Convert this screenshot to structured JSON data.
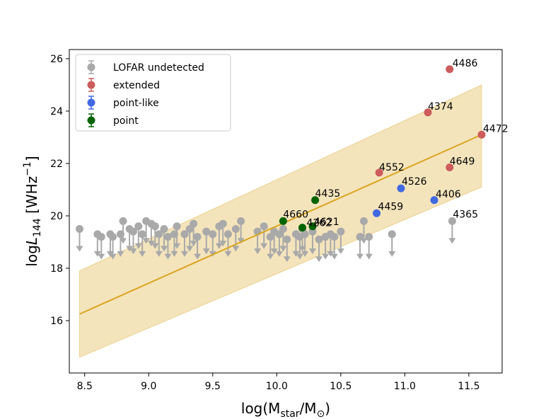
{
  "chart_data": {
    "type": "scatter",
    "xlabel": "log(M_star/M_⊙)",
    "ylabel": "logL_144 [WHz^-1]",
    "xlim": [
      8.38,
      11.76
    ],
    "ylim": [
      14.0,
      26.35
    ],
    "xticks": [
      8.5,
      9.0,
      9.5,
      10.0,
      10.5,
      11.0,
      11.5
    ],
    "xtick_labels": [
      "8.5",
      "9.0",
      "9.5",
      "10.0",
      "10.5",
      "11.0",
      "11.5"
    ],
    "yticks": [
      16,
      18,
      20,
      22,
      24,
      26
    ],
    "ytick_labels": [
      "16",
      "18",
      "20",
      "22",
      "24",
      "26"
    ],
    "colors": {
      "undetected": "#a9a9a9",
      "extended": "#cd5c5c",
      "point_like": "#4169e1",
      "point": "#006400",
      "fit_line": "#daa520",
      "fit_band": "#daa520"
    },
    "fit": {
      "x": [
        8.46,
        11.6
      ],
      "y": [
        16.25,
        23.1
      ],
      "band_lower": [
        14.6,
        21.1
      ],
      "band_upper": [
        17.9,
        25.0
      ]
    },
    "legend": {
      "placement": "top-left",
      "entries": [
        {
          "label": "LOFAR undetected",
          "series": "undetected"
        },
        {
          "label": "extended",
          "series": "extended"
        },
        {
          "label": "point-like",
          "series": "point_like"
        },
        {
          "label": "point",
          "series": "point"
        }
      ]
    },
    "undetected": [
      {
        "x": 8.46,
        "y": 19.5
      },
      {
        "x": 8.6,
        "y": 19.3
      },
      {
        "x": 8.63,
        "y": 19.2
      },
      {
        "x": 8.7,
        "y": 19.3
      },
      {
        "x": 8.72,
        "y": 19.2
      },
      {
        "x": 8.78,
        "y": 19.3
      },
      {
        "x": 8.8,
        "y": 19.8
      },
      {
        "x": 8.85,
        "y": 19.5
      },
      {
        "x": 8.88,
        "y": 19.4
      },
      {
        "x": 8.92,
        "y": 19.6
      },
      {
        "x": 8.95,
        "y": 19.3
      },
      {
        "x": 8.98,
        "y": 19.8
      },
      {
        "x": 9.02,
        "y": 19.7
      },
      {
        "x": 9.05,
        "y": 19.6
      },
      {
        "x": 9.08,
        "y": 19.3
      },
      {
        "x": 9.12,
        "y": 19.5
      },
      {
        "x": 9.15,
        "y": 19.2
      },
      {
        "x": 9.2,
        "y": 19.3
      },
      {
        "x": 9.22,
        "y": 19.6
      },
      {
        "x": 9.28,
        "y": 19.3
      },
      {
        "x": 9.32,
        "y": 19.5
      },
      {
        "x": 9.35,
        "y": 19.7
      },
      {
        "x": 9.38,
        "y": 19.2
      },
      {
        "x": 9.45,
        "y": 19.4
      },
      {
        "x": 9.5,
        "y": 19.3
      },
      {
        "x": 9.55,
        "y": 19.6
      },
      {
        "x": 9.58,
        "y": 19.7
      },
      {
        "x": 9.62,
        "y": 19.3
      },
      {
        "x": 9.68,
        "y": 19.5
      },
      {
        "x": 9.72,
        "y": 19.8
      },
      {
        "x": 9.85,
        "y": 19.4
      },
      {
        "x": 9.9,
        "y": 19.6
      },
      {
        "x": 9.95,
        "y": 19.2
      },
      {
        "x": 9.98,
        "y": 19.4
      },
      {
        "x": 10.02,
        "y": 19.3
      },
      {
        "x": 10.05,
        "y": 19.5
      },
      {
        "x": 10.08,
        "y": 19.1
      },
      {
        "x": 10.15,
        "y": 19.3
      },
      {
        "x": 10.18,
        "y": 19.2
      },
      {
        "x": 10.2,
        "y": 19.5
      },
      {
        "x": 10.22,
        "y": 19.3
      },
      {
        "x": 10.28,
        "y": 19.4
      },
      {
        "x": 10.33,
        "y": 19.1
      },
      {
        "x": 10.38,
        "y": 19.2
      },
      {
        "x": 10.42,
        "y": 19.3
      },
      {
        "x": 10.45,
        "y": 19.2
      },
      {
        "x": 10.5,
        "y": 19.4
      },
      {
        "x": 10.65,
        "y": 19.2
      },
      {
        "x": 10.68,
        "y": 19.8
      },
      {
        "x": 10.72,
        "y": 19.2
      },
      {
        "x": 10.9,
        "y": 19.3
      },
      {
        "x": 11.37,
        "y": 19.8
      }
    ],
    "extended": [
      {
        "x": 10.8,
        "y": 21.65,
        "label": "4552"
      },
      {
        "x": 11.18,
        "y": 23.95,
        "label": "4374"
      },
      {
        "x": 11.35,
        "y": 25.6,
        "label": "4486"
      },
      {
        "x": 11.6,
        "y": 23.1,
        "label": "4472"
      },
      {
        "x": 11.35,
        "y": 21.85,
        "label": "4649"
      }
    ],
    "point_like": [
      {
        "x": 10.97,
        "y": 21.05,
        "label": "4526"
      },
      {
        "x": 10.78,
        "y": 20.1,
        "label": "4459"
      },
      {
        "x": 11.23,
        "y": 20.6,
        "label": "4406"
      }
    ],
    "point": [
      {
        "x": 10.3,
        "y": 20.6,
        "label": "4435"
      },
      {
        "x": 10.05,
        "y": 19.8,
        "label": "4660"
      },
      {
        "x": 10.2,
        "y": 19.55,
        "label": "4262"
      },
      {
        "x": 10.28,
        "y": 19.6,
        "label": "4621"
      }
    ],
    "annotations": [
      {
        "x": 11.37,
        "y": 19.8,
        "label": "4365"
      }
    ]
  }
}
